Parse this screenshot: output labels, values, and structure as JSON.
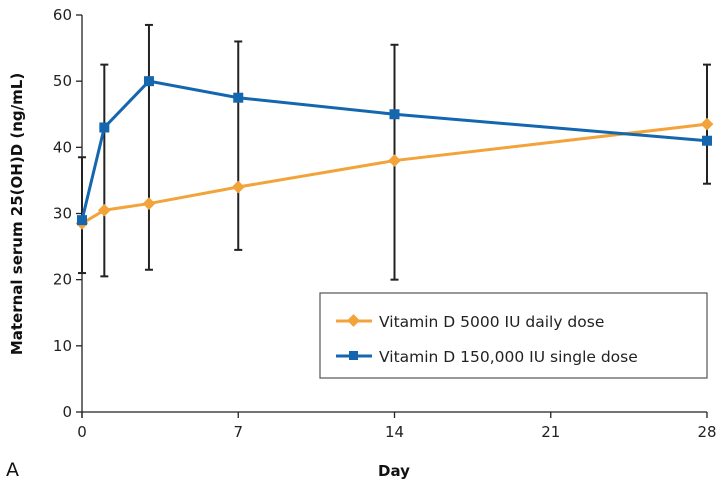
{
  "chart_data": {
    "type": "line",
    "panel_label": "A",
    "xlabel": "Day",
    "ylabel": "Maternal serum 25(OH)D (ng/mL)",
    "xlim": [
      0,
      28
    ],
    "ylim": [
      0,
      60
    ],
    "x_ticks": [
      0,
      7,
      14,
      21,
      28
    ],
    "y_ticks": [
      0,
      10,
      20,
      30,
      40,
      50,
      60
    ],
    "grid": false,
    "legend_position": "bottom-right",
    "series": [
      {
        "name": "Vitamin D 5000 IU daily dose",
        "color": "#F2A33A",
        "marker": "diamond",
        "x": [
          0,
          1,
          3,
          7,
          14,
          28
        ],
        "values": [
          28.5,
          30.5,
          31.5,
          34,
          38,
          43.5
        ]
      },
      {
        "name": "Vitamin D 150,000 IU single dose",
        "color": "#1467AE",
        "marker": "square",
        "x": [
          0,
          1,
          3,
          7,
          14,
          28
        ],
        "values": [
          29,
          43,
          50,
          47.5,
          45,
          41
        ]
      }
    ],
    "error_bars": [
      {
        "x": 0,
        "low": 21,
        "high": 38.5
      },
      {
        "x": 1,
        "low": 20.5,
        "high": 52.5
      },
      {
        "x": 3,
        "low": 21.5,
        "high": 58.5
      },
      {
        "x": 7,
        "low": 24.5,
        "high": 56
      },
      {
        "x": 14,
        "low": 20,
        "high": 55.5
      },
      {
        "x": 28,
        "low": 34.5,
        "high": 52.5
      }
    ]
  }
}
